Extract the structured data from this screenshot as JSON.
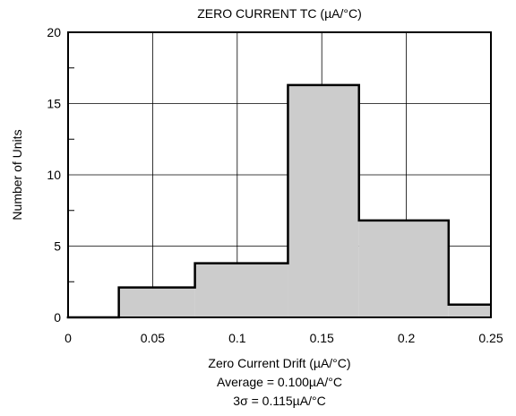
{
  "chart_data": {
    "type": "bar",
    "title": "ZERO CURRENT TC (µA/°C)",
    "xlabel": "Zero Current Drift (µA/°C)",
    "ylabel": "Number of Units",
    "xlim": [
      0,
      0.25
    ],
    "ylim": [
      0,
      20
    ],
    "xticks": [
      "0",
      "0.05",
      "0.1",
      "0.15",
      "0.2",
      "0.25"
    ],
    "xtick_values": [
      0,
      0.05,
      0.1,
      0.15,
      0.2,
      0.25
    ],
    "yticks": [
      "0",
      "5",
      "10",
      "15",
      "20"
    ],
    "ytick_values": [
      0,
      5,
      10,
      15,
      20
    ],
    "grid": true,
    "bins": [
      {
        "x0": 0.03,
        "x1": 0.075,
        "value": 2.1
      },
      {
        "x0": 0.075,
        "x1": 0.13,
        "value": 3.8
      },
      {
        "x0": 0.13,
        "x1": 0.172,
        "value": 16.3
      },
      {
        "x0": 0.172,
        "x1": 0.225,
        "value": 6.8
      },
      {
        "x0": 0.225,
        "x1": 0.25,
        "value": 0.9
      }
    ],
    "bar_fill": "#cccccc",
    "bar_stroke": "#000000",
    "annotations": [
      "Average = 0.100µA/°C",
      "3σ = 0.115µA/°C"
    ]
  }
}
